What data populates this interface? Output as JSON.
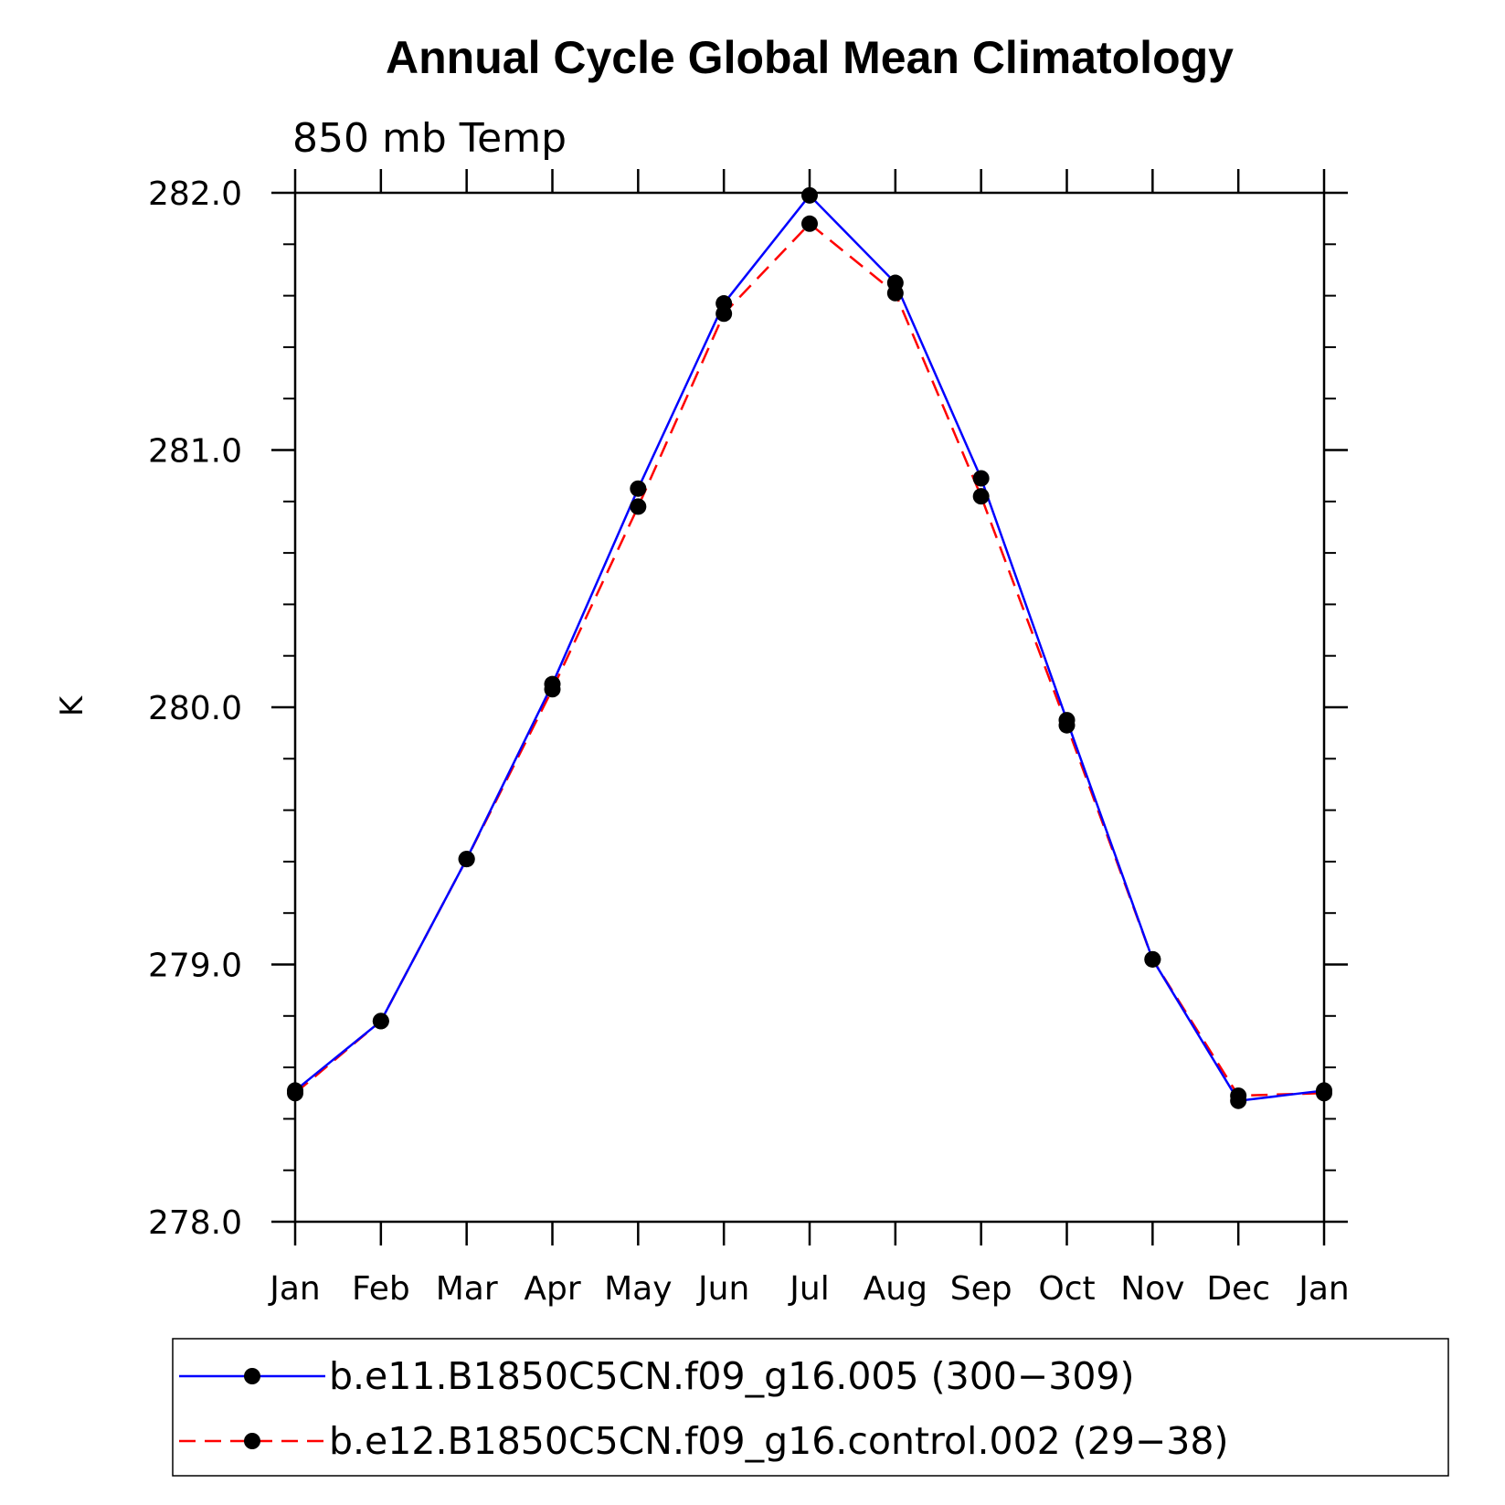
{
  "chart_data": {
    "type": "line",
    "title": "Annual Cycle Global Mean Climatology",
    "subtitle": "850 mb Temp",
    "ylabel": "K",
    "xlabel": "",
    "categories": [
      "Jan",
      "Feb",
      "Mar",
      "Apr",
      "May",
      "Jun",
      "Jul",
      "Aug",
      "Sep",
      "Oct",
      "Nov",
      "Dec",
      "Jan"
    ],
    "yticks": [
      "278.0",
      "279.0",
      "280.0",
      "281.0",
      "282.0"
    ],
    "ylim": [
      278.0,
      282.0
    ],
    "grid": false,
    "legend_position": "bottom",
    "series": [
      {
        "name": "b.e11.B1850C5CN.f09_g16.005 (300−309)",
        "color": "#0000ff",
        "dash": "solid",
        "values": [
          278.51,
          278.78,
          279.41,
          280.09,
          280.85,
          281.57,
          281.99,
          281.65,
          280.89,
          279.95,
          279.02,
          278.47,
          278.51
        ]
      },
      {
        "name": "b.e12.B1850C5CN.f09_g16.control.002 (29−38)",
        "color": "#ff0000",
        "dash": "dashed",
        "values": [
          278.5,
          278.78,
          279.41,
          280.07,
          280.78,
          281.53,
          281.88,
          281.61,
          280.82,
          279.93,
          279.02,
          278.49,
          278.5
        ]
      }
    ]
  }
}
